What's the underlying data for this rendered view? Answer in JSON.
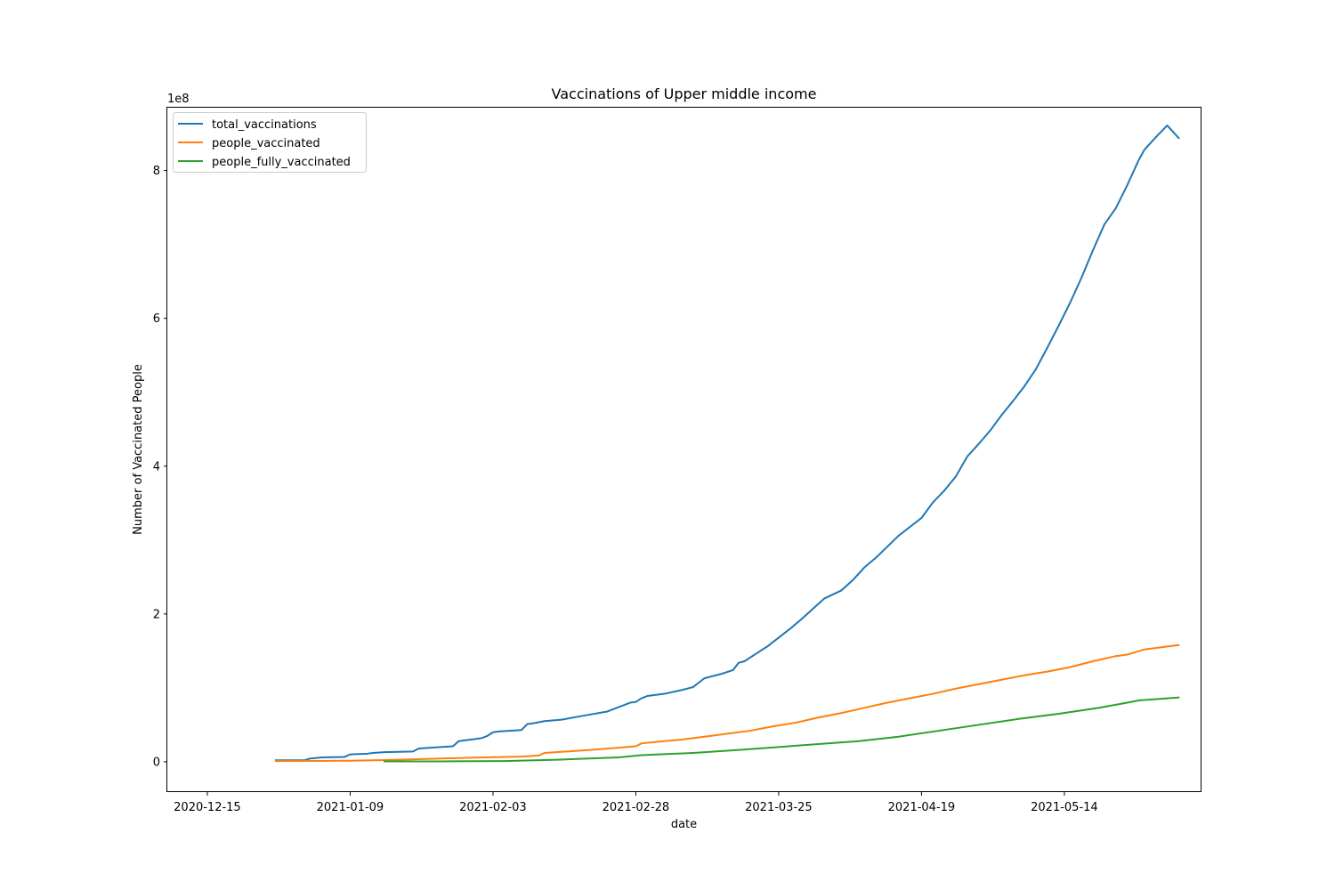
{
  "chart_data": {
    "type": "line",
    "title": "Vaccinations of Upper middle income",
    "xlabel": "date",
    "ylabel": "Number of Vaccinated People",
    "y_scale_label": "1e8",
    "y_unit_scale": 100000000,
    "xlim": [
      "2020-12-08",
      "2021-06-07"
    ],
    "ylim": [
      -41000000,
      885000000
    ],
    "x_ticks": [
      "2020-12-15",
      "2021-01-09",
      "2021-02-03",
      "2021-02-28",
      "2021-03-25",
      "2021-04-19",
      "2021-05-14"
    ],
    "y_ticks": [
      0,
      200000000,
      400000000,
      600000000,
      800000000
    ],
    "y_tick_labels": [
      "0",
      "2",
      "4",
      "6",
      "8"
    ],
    "grid": false,
    "legend_position": "upper left",
    "series": [
      {
        "name": "total_vaccinations",
        "color": "#1f77b4",
        "x": [
          "2020-12-27",
          "2021-01-01",
          "2021-01-02",
          "2021-01-03",
          "2021-01-04",
          "2021-01-08",
          "2021-01-09",
          "2021-01-12",
          "2021-01-13",
          "2021-01-15",
          "2021-01-20",
          "2021-01-21",
          "2021-01-27",
          "2021-01-28",
          "2021-01-31",
          "2021-02-01",
          "2021-02-02",
          "2021-02-03",
          "2021-02-04",
          "2021-02-08",
          "2021-02-09",
          "2021-02-10",
          "2021-02-12",
          "2021-02-15",
          "2021-02-20",
          "2021-02-23",
          "2021-02-27",
          "2021-02-28",
          "2021-03-01",
          "2021-03-02",
          "2021-03-05",
          "2021-03-08",
          "2021-03-10",
          "2021-03-12",
          "2021-03-13",
          "2021-03-15",
          "2021-03-17",
          "2021-03-18",
          "2021-03-19",
          "2021-03-21",
          "2021-03-23",
          "2021-03-25",
          "2021-03-27",
          "2021-03-29",
          "2021-03-31",
          "2021-04-02",
          "2021-04-05",
          "2021-04-07",
          "2021-04-09",
          "2021-04-11",
          "2021-04-13",
          "2021-04-15",
          "2021-04-17",
          "2021-04-19",
          "2021-04-21",
          "2021-04-23",
          "2021-04-25",
          "2021-04-27",
          "2021-04-29",
          "2021-05-01",
          "2021-05-03",
          "2021-05-05",
          "2021-05-07",
          "2021-05-09",
          "2021-05-11",
          "2021-05-13",
          "2021-05-15",
          "2021-05-17",
          "2021-05-19",
          "2021-05-21",
          "2021-05-23",
          "2021-05-25",
          "2021-05-26",
          "2021-05-27",
          "2021-05-28",
          "2021-05-30",
          "2021-06-01",
          "2021-06-03"
        ],
        "values": [
          2000000,
          2000000,
          4500000,
          5000000,
          6000000,
          6500000,
          10000000,
          11000000,
          12000000,
          13000000,
          14000000,
          18000000,
          21000000,
          28000000,
          31000000,
          32000000,
          35000000,
          40000000,
          41000000,
          43000000,
          51000000,
          52000000,
          55000000,
          57000000,
          64000000,
          68000000,
          80000000,
          81000000,
          86000000,
          89000000,
          92000000,
          97000000,
          101000000,
          113000000,
          115000000,
          119000000,
          124000000,
          134000000,
          136000000,
          146000000,
          156000000,
          168000000,
          180000000,
          193000000,
          207000000,
          221000000,
          232000000,
          246000000,
          263000000,
          276000000,
          291000000,
          306000000,
          318000000,
          330000000,
          351000000,
          367000000,
          386000000,
          413000000,
          430000000,
          448000000,
          469000000,
          488000000,
          508000000,
          531000000,
          560000000,
          590000000,
          621000000,
          655000000,
          692000000,
          727000000,
          749000000,
          780000000,
          797000000,
          814000000,
          828000000,
          845000000,
          861000000,
          844000000
        ]
      },
      {
        "name": "people_vaccinated",
        "color": "#ff7f0e",
        "x": [
          "2020-12-27",
          "2021-01-03",
          "2021-01-09",
          "2021-01-16",
          "2021-01-23",
          "2021-01-30",
          "2021-02-05",
          "2021-02-08",
          "2021-02-11",
          "2021-02-12",
          "2021-02-16",
          "2021-02-20",
          "2021-02-25",
          "2021-02-28",
          "2021-03-01",
          "2021-03-05",
          "2021-03-08",
          "2021-03-12",
          "2021-03-16",
          "2021-03-20",
          "2021-03-24",
          "2021-03-28",
          "2021-04-01",
          "2021-04-05",
          "2021-04-09",
          "2021-04-13",
          "2021-04-17",
          "2021-04-21",
          "2021-04-25",
          "2021-04-29",
          "2021-05-03",
          "2021-05-07",
          "2021-05-11",
          "2021-05-15",
          "2021-05-19",
          "2021-05-23",
          "2021-05-25",
          "2021-05-28",
          "2021-06-03"
        ],
        "values": [
          1000000,
          1200000,
          1500000,
          2500000,
          4000000,
          5500000,
          6500000,
          7000000,
          8500000,
          12000000,
          14000000,
          16000000,
          19000000,
          21000000,
          25000000,
          28000000,
          30000000,
          34000000,
          38000000,
          42000000,
          48000000,
          53000000,
          60000000,
          66000000,
          73000000,
          80000000,
          86000000,
          92000000,
          99000000,
          105000000,
          111000000,
          117000000,
          122000000,
          128000000,
          136000000,
          143000000,
          145000000,
          152000000,
          158000000
        ]
      },
      {
        "name": "people_fully_vaccinated",
        "color": "#2ca02c",
        "x": [
          "2021-01-15",
          "2021-01-25",
          "2021-02-05",
          "2021-02-15",
          "2021-02-25",
          "2021-03-01",
          "2021-03-10",
          "2021-03-18",
          "2021-03-25",
          "2021-04-01",
          "2021-04-08",
          "2021-04-15",
          "2021-04-22",
          "2021-04-29",
          "2021-05-06",
          "2021-05-13",
          "2021-05-20",
          "2021-05-25",
          "2021-05-27",
          "2021-06-03"
        ],
        "values": [
          500000,
          600000,
          1000000,
          3000000,
          6000000,
          9000000,
          12000000,
          16000000,
          20000000,
          24000000,
          28000000,
          34000000,
          42000000,
          50000000,
          58000000,
          65000000,
          73000000,
          80000000,
          83000000,
          87000000
        ]
      }
    ]
  }
}
